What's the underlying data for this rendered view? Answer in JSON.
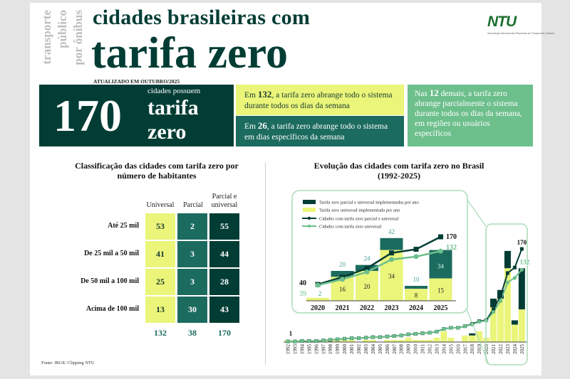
{
  "header": {
    "side_text": [
      "transporte",
      "público",
      "por ônibus"
    ],
    "title_line1": "cidades brasileiras com",
    "title_line2": "tarifa zero",
    "updated": "ATUALIZADO EM OUTUBRO/2025",
    "logo": "NTU",
    "logo_sub": "Associação Nacional das Empresas de Transportes Urbanos"
  },
  "summary": {
    "total": "170",
    "possess": "cidades possuem",
    "tarifa": "tarifa",
    "zero": "zero",
    "universal": {
      "pre": "Em ",
      "num": "132",
      "post": ", a tarifa zero abrange todo o sistema durante todos os dias da semana"
    },
    "specific_days": {
      "pre": "Em ",
      "num": "26",
      "post": ", a tarifa zero abrange todo o sistema  em dias específicos da semana"
    },
    "partial": {
      "pre": "Nas ",
      "num": "12",
      "post": " demais, a tarifa zero abrange parcialmente o sistema durante todos os dias da semana, em regiões ou usuários específicos"
    }
  },
  "table": {
    "title": "Classificação das cidades com tarifa zero por número de habitantes",
    "columns": [
      "Universal",
      "Parcial",
      "Parcial e universal"
    ],
    "rows": [
      {
        "label": "Até 25 mil",
        "values": [
          "53",
          "2",
          "55"
        ]
      },
      {
        "label": "De 25 mil a 50 mil",
        "values": [
          "41",
          "3",
          "44"
        ]
      },
      {
        "label": "De 50 mil a 100 mil",
        "values": [
          "25",
          "3",
          "28"
        ]
      },
      {
        "label": "Acima de 100 mil",
        "values": [
          "13",
          "30",
          "43"
        ]
      }
    ],
    "totals": [
      "132",
      "38",
      "170"
    ],
    "source": "Fonte: IBGE/ Clipping NTU"
  },
  "colors": {
    "dark": "#023d35",
    "teal": "#1c6b5f",
    "yellow": "#eaf57a",
    "light_green": "#6dbf8c"
  },
  "chart_data": {
    "type": "bar",
    "title": "Evolução das cidades com tarifa zero no Brasil (1992-2025)",
    "legend": [
      "Tarifa zero parcial e universal implementadas por ano",
      "Tarifa zero universal implementada por ano",
      "Cidades com tarifa zero parcial e universal",
      "Cidades com tarifa zero universal"
    ],
    "years": [
      1992,
      1993,
      1994,
      1995,
      1996,
      1997,
      1998,
      1999,
      2000,
      2001,
      2002,
      2003,
      2004,
      2005,
      2006,
      2007,
      2008,
      2009,
      2010,
      2011,
      2012,
      2013,
      2014,
      2015,
      2016,
      2017,
      2018,
      2019,
      2020,
      2021,
      2022,
      2023,
      2024,
      2025
    ],
    "universal_per_year": [
      1,
      0,
      1,
      0,
      0,
      1,
      1,
      1,
      1,
      1,
      0,
      1,
      1,
      0,
      1,
      1,
      1,
      2,
      1,
      1,
      1,
      2,
      5,
      2,
      0,
      3,
      3,
      5,
      2,
      16,
      20,
      34,
      8,
      15
    ],
    "total_per_year": [
      1,
      0,
      1,
      0,
      0,
      1,
      1,
      1,
      1,
      1,
      0,
      1,
      1,
      0,
      1,
      1,
      1,
      2,
      1,
      1,
      1,
      2,
      5,
      2,
      0,
      3,
      4,
      5,
      2,
      20,
      24,
      42,
      10,
      34
    ],
    "first_label": "1",
    "inset": {
      "years": [
        "2020",
        "2021",
        "2022",
        "2023",
        "2024",
        "2025"
      ],
      "universal_per_year": [
        2,
        16,
        20,
        34,
        8,
        15
      ],
      "total_per_year": [
        2,
        20,
        24,
        42,
        10,
        34
      ],
      "universal_labels": [
        "2",
        "16",
        "20",
        "34",
        "8",
        "15"
      ],
      "total_labels": [
        "",
        "20",
        "24",
        "42",
        "10",
        "34"
      ],
      "cumulative_total": [
        40,
        60,
        84,
        126,
        136,
        170
      ],
      "cumulative_universal": [
        39,
        55,
        75,
        109,
        117,
        132
      ],
      "start_total_label": "40",
      "start_universal_label": "39",
      "end_total_label": "170",
      "end_universal_label": "132"
    }
  }
}
